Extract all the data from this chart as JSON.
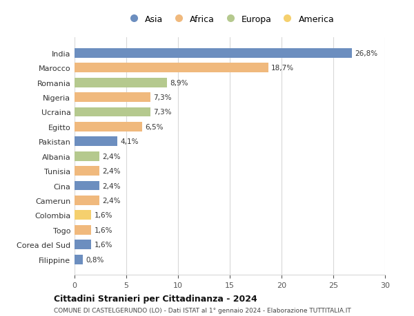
{
  "categories": [
    "India",
    "Marocco",
    "Romania",
    "Nigeria",
    "Ucraina",
    "Egitto",
    "Pakistan",
    "Albania",
    "Tunisia",
    "Cina",
    "Camerun",
    "Colombia",
    "Togo",
    "Corea del Sud",
    "Filippine"
  ],
  "values": [
    26.8,
    18.7,
    8.9,
    7.3,
    7.3,
    6.5,
    4.1,
    2.4,
    2.4,
    2.4,
    2.4,
    1.6,
    1.6,
    1.6,
    0.8
  ],
  "labels": [
    "26,8%",
    "18,7%",
    "8,9%",
    "7,3%",
    "7,3%",
    "6,5%",
    "4,1%",
    "2,4%",
    "2,4%",
    "2,4%",
    "2,4%",
    "1,6%",
    "1,6%",
    "1,6%",
    "0,8%"
  ],
  "continents": [
    "Asia",
    "Africa",
    "Europa",
    "Africa",
    "Europa",
    "Africa",
    "Asia",
    "Europa",
    "Africa",
    "Asia",
    "Africa",
    "America",
    "Africa",
    "Asia",
    "Asia"
  ],
  "colors": {
    "Asia": "#6c8ebf",
    "Africa": "#f0b97d",
    "Europa": "#b5c98e",
    "America": "#f5d06e"
  },
  "legend_order": [
    "Asia",
    "Africa",
    "Europa",
    "America"
  ],
  "title1": "Cittadini Stranieri per Cittadinanza - 2024",
  "title2": "COMUNE DI CASTELGERUNDO (LO) - Dati ISTAT al 1° gennaio 2024 - Elaborazione TUTTITALIA.IT",
  "xlim": [
    0,
    30
  ],
  "xticks": [
    0,
    5,
    10,
    15,
    20,
    25,
    30
  ],
  "background_color": "#ffffff",
  "grid_color": "#d8d8d8"
}
